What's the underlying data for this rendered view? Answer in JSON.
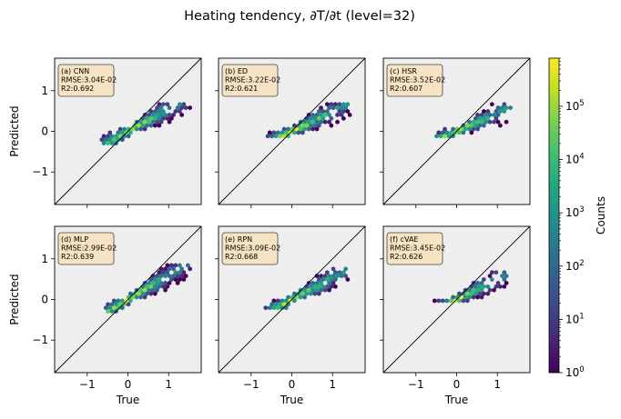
{
  "figure": {
    "title": "Heating tendency, ∂T/∂t (level=32)"
  },
  "chart_data": {
    "type": "hexbin",
    "xlabel": "True",
    "ylabel": "Predicted",
    "xlim": [
      -1.8,
      1.8
    ],
    "ylim": [
      -1.8,
      1.8
    ],
    "xticks": [
      -1,
      0,
      1
    ],
    "yticks": [
      -1,
      0,
      1
    ],
    "reference_line": "y = x",
    "background": "#eeeeee",
    "grid": false,
    "colorbar": {
      "label": "Counts",
      "scale": "log",
      "min": 1,
      "max": 800000,
      "ticks": [
        {
          "value": 1,
          "base": "10",
          "exp": "0"
        },
        {
          "value": 10,
          "base": "10",
          "exp": "1"
        },
        {
          "value": 100,
          "base": "10",
          "exp": "2"
        },
        {
          "value": 1000,
          "base": "10",
          "exp": "3"
        },
        {
          "value": 10000,
          "base": "10",
          "exp": "4"
        },
        {
          "value": 100000,
          "base": "10",
          "exp": "5"
        }
      ],
      "colormap": "viridis"
    },
    "panels": [
      {
        "id": "a",
        "model": "CNN",
        "label": "(a) CNN",
        "rmse_text": "RMSE:3.04E-02",
        "r2_text": "R2:0.692",
        "x_range": [
          -0.65,
          1.55
        ],
        "y_range": [
          -0.3,
          0.75
        ],
        "slope": 0.55
      },
      {
        "id": "b",
        "model": "ED",
        "label": "(b) ED",
        "rmse_text": "RMSE:3.22E-02",
        "r2_text": "R2:0.621",
        "x_range": [
          -0.6,
          1.45
        ],
        "y_range": [
          -0.2,
          0.7
        ],
        "slope": 0.5
      },
      {
        "id": "c",
        "model": "HSR",
        "label": "(c) HSR",
        "rmse_text": "RMSE:3.52E-02",
        "r2_text": "R2:0.607",
        "x_range": [
          -0.5,
          1.35
        ],
        "y_range": [
          -0.15,
          0.75
        ],
        "slope": 0.45
      },
      {
        "id": "d",
        "model": "MLP",
        "label": "(d) MLP",
        "rmse_text": "RMSE:2.99E-02",
        "r2_text": "R2:0.639",
        "x_range": [
          -0.55,
          1.55
        ],
        "y_range": [
          -0.35,
          0.85
        ],
        "slope": 0.6
      },
      {
        "id": "e",
        "model": "RPN",
        "label": "(e) RPN",
        "rmse_text": "RMSE:3.09E-02",
        "r2_text": "R2:0.668",
        "x_range": [
          -0.75,
          1.4
        ],
        "y_range": [
          -0.25,
          0.8
        ],
        "slope": 0.55
      },
      {
        "id": "f",
        "model": "cVAE",
        "label": "(f) cVAE",
        "rmse_text": "RMSE:3.45E-02",
        "r2_text": "R2:0.626",
        "x_range": [
          -0.6,
          1.25
        ],
        "y_range": [
          -0.1,
          0.75
        ],
        "slope": 0.5
      }
    ]
  }
}
